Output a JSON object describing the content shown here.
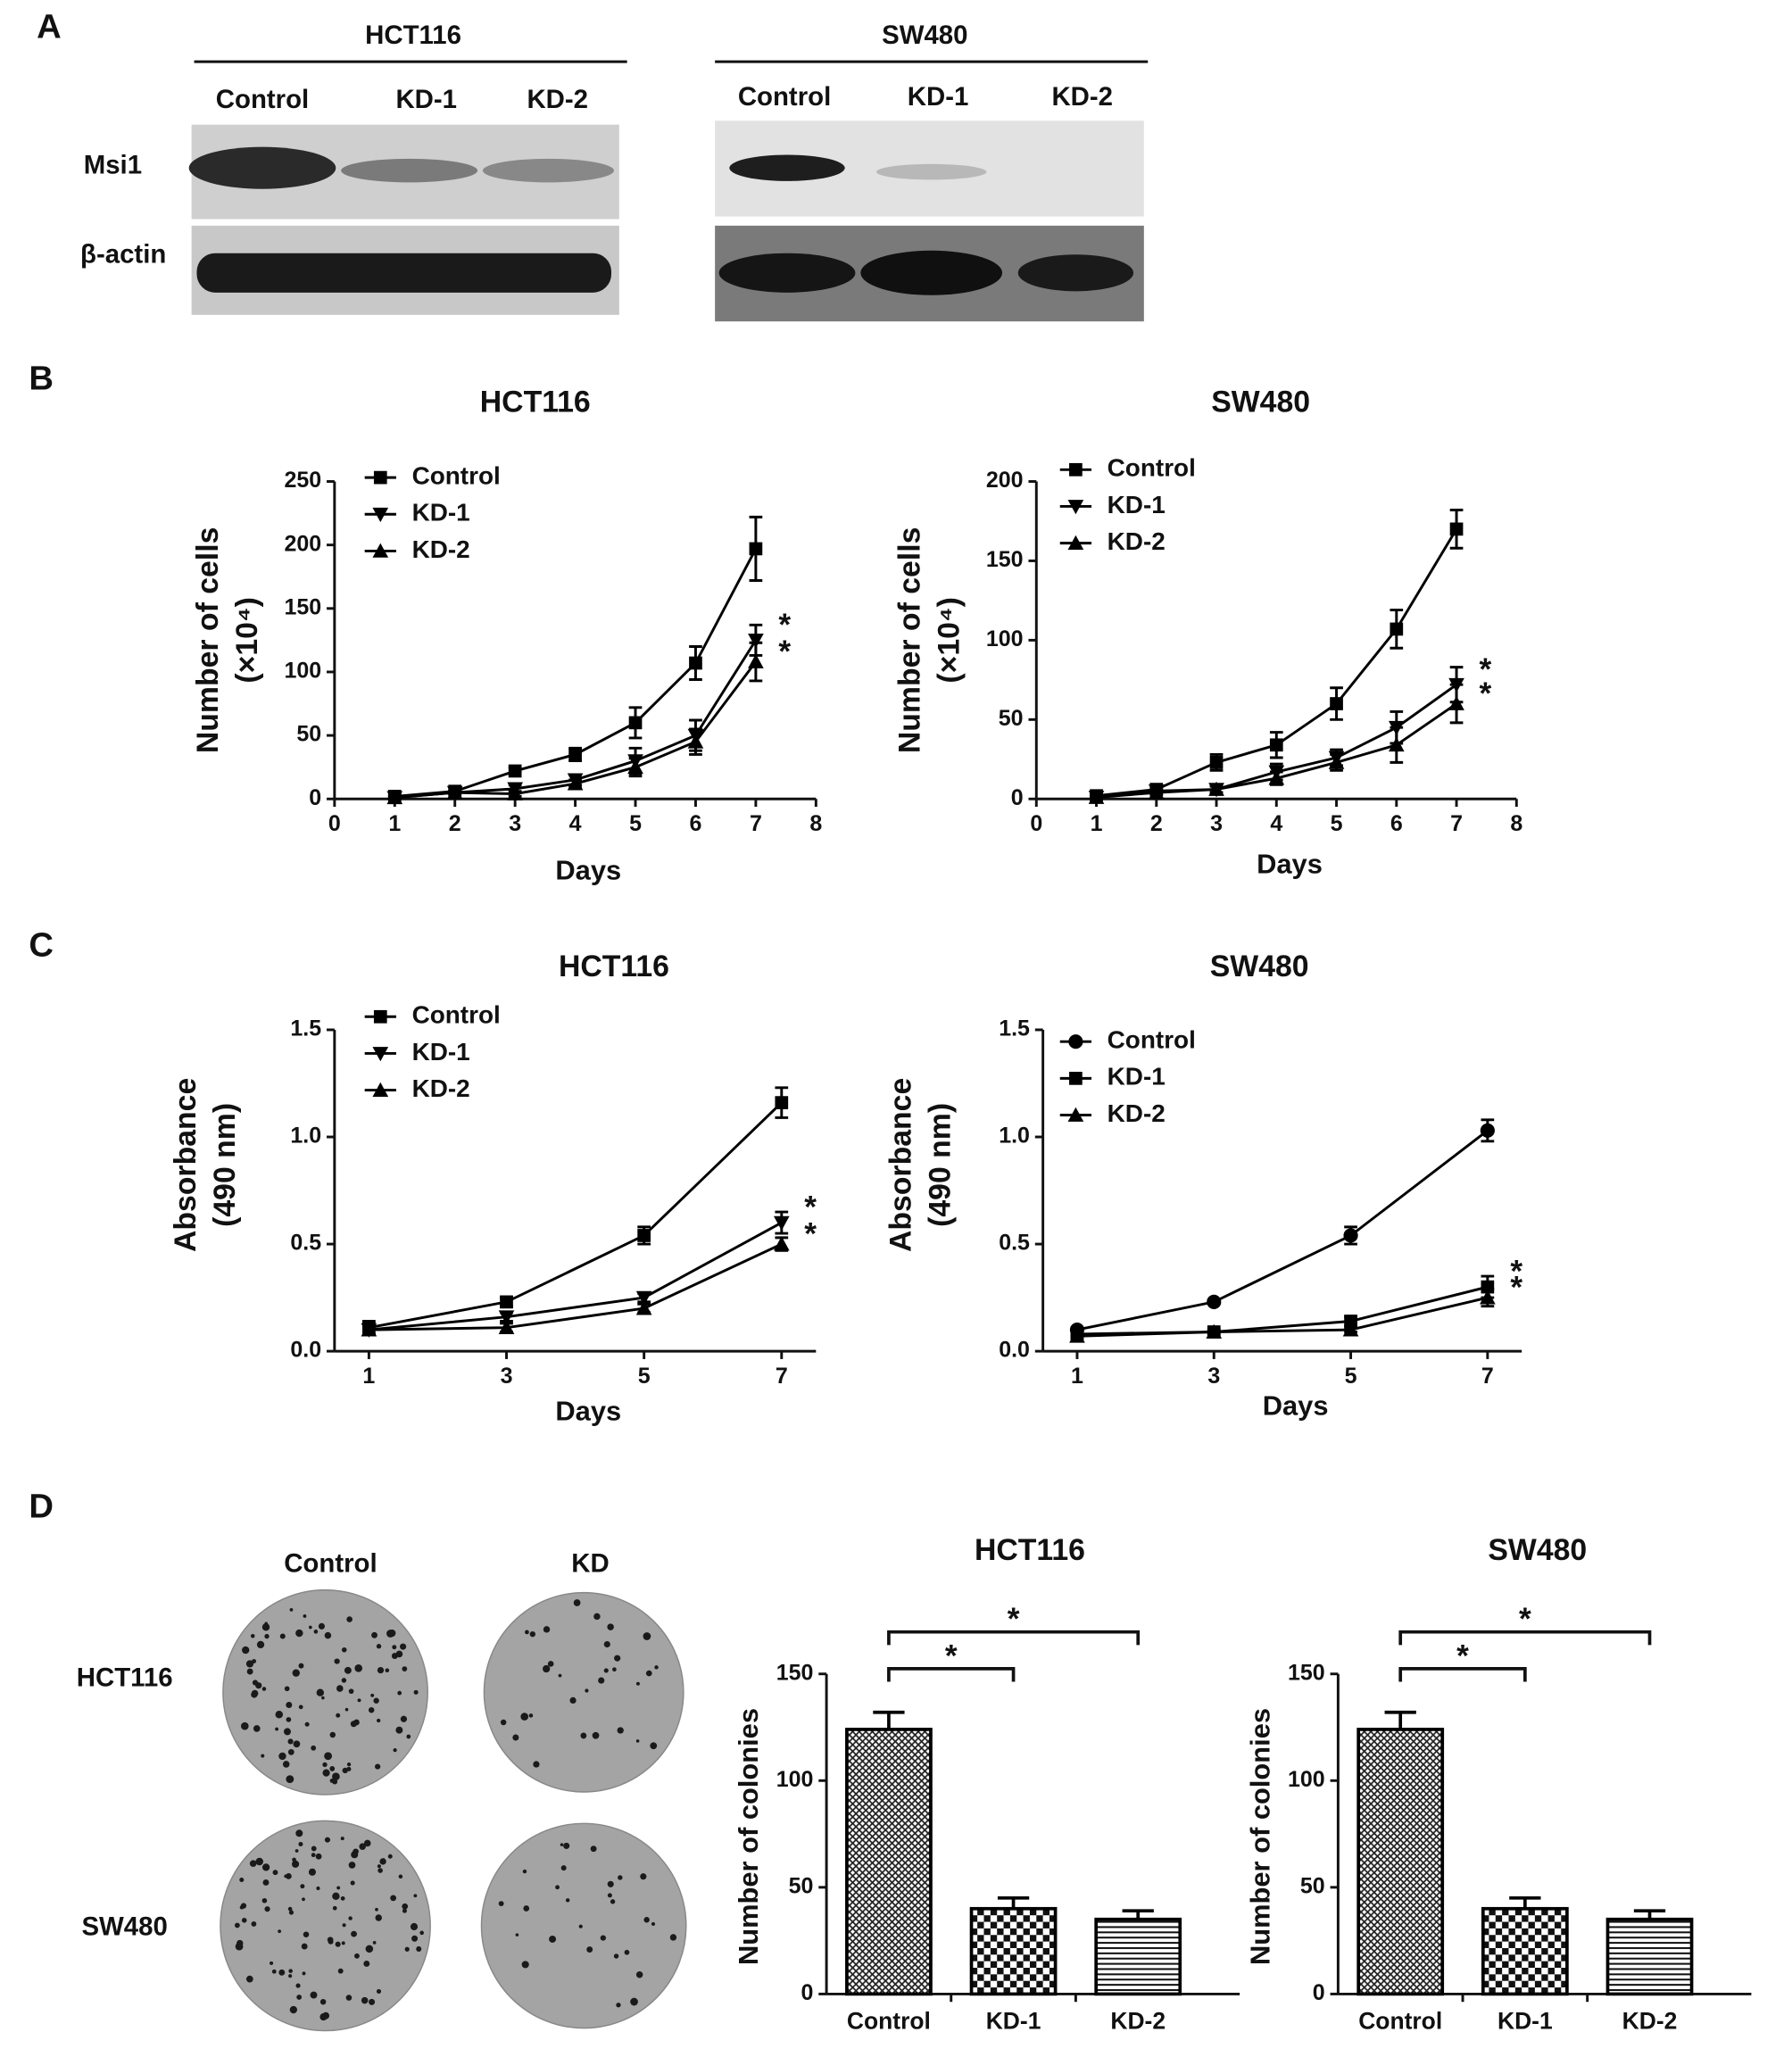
{
  "panel_labels": [
    "A",
    "B",
    "C",
    "D"
  ],
  "blot": {
    "cell_lines": [
      "HCT116",
      "SW480"
    ],
    "lanes": [
      [
        "Control",
        "KD-1",
        "KD-2"
      ],
      [
        "Control",
        "KD-1",
        "KD-2"
      ]
    ],
    "proteins": [
      "Msi1",
      "β-actin"
    ]
  },
  "colony": {
    "columns": [
      "Control",
      "KD"
    ],
    "rows": [
      "HCT116",
      "SW480"
    ]
  },
  "chart_data": [
    {
      "type": "line",
      "title": "HCT116",
      "x_label": "Days",
      "y_label": [
        "Number of cells",
        "(×10⁴)"
      ],
      "x": [
        1,
        2,
        3,
        4,
        5,
        6,
        7
      ],
      "xlim": [
        0,
        8
      ],
      "xticks": [
        0,
        1,
        2,
        3,
        4,
        5,
        6,
        7,
        8
      ],
      "ylim": [
        0,
        250
      ],
      "yticks": [
        0,
        50,
        100,
        150,
        200,
        250
      ],
      "series": [
        {
          "name": "Control",
          "marker": "square",
          "color": "#000000",
          "values": [
            2,
            6,
            22,
            35,
            60,
            107,
            197
          ],
          "errors": [
            1,
            1,
            3,
            5,
            12,
            13,
            25
          ]
        },
        {
          "name": "KD-1",
          "marker": "down",
          "color": "#000000",
          "values": [
            1,
            5,
            8,
            15,
            30,
            50,
            125
          ],
          "errors": [
            1,
            1,
            3,
            4,
            10,
            12,
            12
          ]
        },
        {
          "name": "KD-2",
          "marker": "up",
          "color": "#000000",
          "values": [
            1,
            5,
            4,
            12,
            25,
            45,
            108
          ],
          "errors": [
            1,
            1,
            2,
            3,
            7,
            10,
            15
          ]
        }
      ],
      "annotations": [
        "*",
        "*"
      ]
    },
    {
      "type": "line",
      "title": "SW480",
      "x_label": "Days",
      "y_label": [
        "Number of cells",
        "(×10⁴)"
      ],
      "x": [
        1,
        2,
        3,
        4,
        5,
        6,
        7
      ],
      "xlim": [
        0,
        8
      ],
      "xticks": [
        0,
        1,
        2,
        3,
        4,
        5,
        6,
        7,
        8
      ],
      "ylim": [
        0,
        200
      ],
      "yticks": [
        0,
        50,
        100,
        150,
        200
      ],
      "series": [
        {
          "name": "Control",
          "marker": "square",
          "color": "#000000",
          "values": [
            2,
            6,
            23,
            34,
            60,
            107,
            170
          ],
          "errors": [
            1,
            1,
            5,
            8,
            10,
            12,
            12
          ]
        },
        {
          "name": "KD-1",
          "marker": "down",
          "color": "#000000",
          "values": [
            1,
            5,
            6,
            17,
            26,
            45,
            72
          ],
          "errors": [
            1,
            1,
            2,
            5,
            5,
            10,
            11
          ]
        },
        {
          "name": "KD-2",
          "marker": "up",
          "color": "#000000",
          "values": [
            1,
            4,
            6,
            13,
            23,
            34,
            60
          ],
          "errors": [
            1,
            1,
            2,
            4,
            5,
            11,
            12
          ]
        }
      ],
      "annotations": [
        "*",
        "*"
      ]
    },
    {
      "type": "line",
      "title": "HCT116",
      "x_label": "Days",
      "y_label": [
        "Absorbance",
        "(490 nm)"
      ],
      "x": [
        1,
        3,
        5,
        7
      ],
      "xlim": [
        0.5,
        7.5
      ],
      "xticks": [
        1,
        3,
        5,
        7
      ],
      "ylim": [
        0,
        1.5
      ],
      "yticks": [
        {
          "value": 0,
          "label": "0.0"
        },
        0.5,
        {
          "value": 1,
          "label": "1.0"
        },
        1.5
      ],
      "series": [
        {
          "name": "Control",
          "marker": "square",
          "color": "#000000",
          "values": [
            0.11,
            0.23,
            0.54,
            1.16
          ],
          "errors": [
            0.03,
            0.02,
            0.04,
            0.07
          ]
        },
        {
          "name": "KD-1",
          "marker": "down",
          "color": "#000000",
          "values": [
            0.1,
            0.16,
            0.25,
            0.6
          ],
          "errors": [
            0.02,
            0.02,
            0.02,
            0.05
          ]
        },
        {
          "name": "KD-2",
          "marker": "up",
          "color": "#000000",
          "values": [
            0.1,
            0.11,
            0.2,
            0.5
          ],
          "errors": [
            0.02,
            0.02,
            0.02,
            0.03
          ]
        }
      ],
      "annotations": [
        "*",
        "*"
      ]
    },
    {
      "type": "line",
      "title": "SW480",
      "x_label": "Days",
      "y_label": [
        "Absorbance",
        "(490 nm)"
      ],
      "x": [
        1,
        3,
        5,
        7
      ],
      "xlim": [
        0.5,
        7.5
      ],
      "xticks": [
        1,
        3,
        5,
        7
      ],
      "ylim": [
        0,
        1.5
      ],
      "yticks": [
        {
          "value": 0,
          "label": "0.0"
        },
        0.5,
        {
          "value": 1,
          "label": "1.0"
        },
        1.5
      ],
      "series": [
        {
          "name": "Control",
          "marker": "circle",
          "color": "#000000",
          "values": [
            0.1,
            0.23,
            0.54,
            1.03
          ],
          "errors": [
            0.01,
            0.01,
            0.04,
            0.05
          ]
        },
        {
          "name": "KD-1",
          "marker": "square",
          "color": "#000000",
          "values": [
            0.08,
            0.09,
            0.14,
            0.3
          ],
          "errors": [
            0.01,
            0.01,
            0.02,
            0.05
          ]
        },
        {
          "name": "KD-2",
          "marker": "up",
          "color": "#000000",
          "values": [
            0.07,
            0.09,
            0.1,
            0.25
          ],
          "errors": [
            0.01,
            0.01,
            0.01,
            0.04
          ]
        }
      ],
      "annotations": [
        "*",
        "*"
      ]
    },
    {
      "type": "bar",
      "title": "HCT116",
      "y_label": "Number of colonies",
      "categories": [
        "Control",
        "KD-1",
        "KD-2"
      ],
      "values": [
        124,
        40,
        35
      ],
      "errors": [
        8,
        5,
        4
      ],
      "patterns": [
        "crosshatch",
        "checker",
        "hlines"
      ],
      "color": "#000000",
      "ylim": [
        0,
        150
      ],
      "yticks": [
        0,
        50,
        100,
        150
      ],
      "annotations": [
        "*",
        "*"
      ]
    },
    {
      "type": "bar",
      "title": "SW480",
      "y_label": "Number of colonies",
      "categories": [
        "Control",
        "KD-1",
        "KD-2"
      ],
      "values": [
        124,
        40,
        35
      ],
      "errors": [
        8,
        5,
        4
      ],
      "patterns": [
        "crosshatch",
        "checker",
        "hlines"
      ],
      "color": "#000000",
      "ylim": [
        0,
        150
      ],
      "yticks": [
        0,
        50,
        100,
        150
      ],
      "annotations": [
        "*",
        "*"
      ]
    }
  ]
}
